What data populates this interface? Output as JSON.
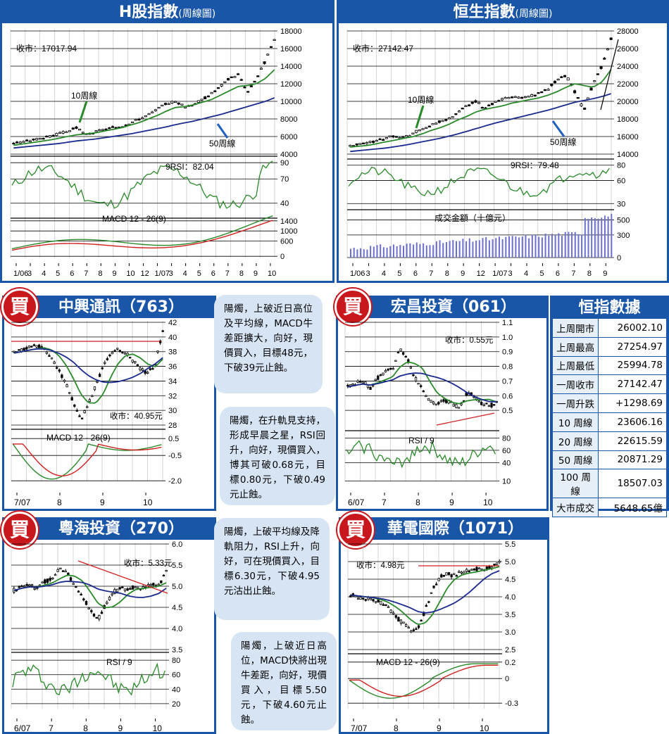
{
  "hshares": {
    "title": "H股指數",
    "subtitle": "(周線圖)",
    "close_label": "收市：17017.94",
    "ma10_label": "10周線",
    "ma50_label": "50周線",
    "rsi_label": "9RSI：82.04",
    "macd_label": "MACD 12 - 26(9)",
    "price_ticks": [
      "18000",
      "16000",
      "14000",
      "12000",
      "10000",
      "8000",
      "6000",
      "4000"
    ],
    "rsi_ticks": [
      "90",
      "70",
      "40"
    ],
    "macd_ticks": [
      "1400",
      "1000",
      "600",
      "0"
    ],
    "x_ticks": [
      "1/06",
      "3",
      "4",
      "5",
      "6",
      "7",
      "8",
      "9",
      "10",
      "12",
      "1/07",
      "3",
      "4",
      "5",
      "6",
      "7",
      "8",
      "9",
      "10"
    ]
  },
  "hsi": {
    "title": "恒生指數",
    "subtitle": "(周線圖)",
    "close_label": "收市：27142.47",
    "ma10_label": "10周線",
    "ma50_label": "50周線",
    "rsi_label": "9RSI：79.48",
    "vol_label": "成交金額（十億元）",
    "price_ticks": [
      "28000",
      "26000",
      "24000",
      "22000",
      "20000",
      "18000",
      "16000",
      "14000"
    ],
    "rsi_ticks": [
      "80",
      "60",
      "30"
    ],
    "vol_ticks": [
      "500",
      "300",
      "0"
    ],
    "x_ticks": [
      "1/06",
      "3",
      "4",
      "5",
      "6",
      "7",
      "8",
      "9",
      "12",
      "1/07",
      "3",
      "4",
      "5",
      "6",
      "7",
      "8",
      "9"
    ]
  },
  "stock_763": {
    "title": "中興通訊（763）",
    "buy": "買",
    "close_label": "收市：40.95元",
    "macd_label": "MACD 12 - 26(9)",
    "price_ticks": [
      "42",
      "40",
      "38",
      "36",
      "34",
      "32",
      "30",
      "28"
    ],
    "macd_ticks": [
      "0.5",
      "-0.5",
      "-2.0"
    ],
    "x_ticks": [
      "7/07",
      "8",
      "9",
      "10"
    ],
    "comment": "陽燭，上破近日高位及平均線，MACD牛差距擴大，向好，現價買入，目標48元，下破39元止蝕。"
  },
  "stock_061": {
    "title": "宏昌投資（061）",
    "buy": "買",
    "close_label": "收市：0.55元",
    "rsi_label": "RSI / 9",
    "price_ticks": [
      "1.1",
      "1.0",
      "0.9",
      "0.8",
      "0.7",
      "0.6",
      "0.5"
    ],
    "rsi_ticks": [
      "80",
      "60",
      "40",
      "10"
    ],
    "x_ticks": [
      "6/07",
      "7",
      "8",
      "9",
      "10"
    ],
    "comment": "陽燭，在升軌見支持，形成早晨之星，RSI回升，向好，現價買入，博其可破0.68元，目標0.80元，下破0.49元止蝕。"
  },
  "stats": {
    "title": "恒指數據",
    "rows": [
      {
        "k": "上周開市",
        "v": "26002.10"
      },
      {
        "k": "上周最高",
        "v": "27254.97"
      },
      {
        "k": "上周最低",
        "v": "25994.78"
      },
      {
        "k": "一周收市",
        "v": "27142.47"
      },
      {
        "k": "一周升跌",
        "v": "+1298.69"
      },
      {
        "k": "10 周線",
        "v": "23606.16"
      },
      {
        "k": "20 周線",
        "v": "22615.59"
      },
      {
        "k": "50 周線",
        "v": "20871.29"
      },
      {
        "k": "100 周線",
        "v": "18507.03"
      },
      {
        "k": "大市成交",
        "v": "5648.65億"
      }
    ]
  },
  "stock_270": {
    "title": "粵海投資（270）",
    "buy": "買",
    "close_label": "收市：5.33元",
    "rsi_label": "RSI / 9",
    "price_ticks": [
      "6.0",
      "5.5",
      "5.0",
      "4.5",
      "4.0",
      "3.5"
    ],
    "rsi_ticks": [
      "80",
      "60",
      "40",
      "20"
    ],
    "x_ticks": [
      "6/07",
      "7",
      "8",
      "9",
      "10"
    ],
    "comment": "陽燭，上破平均線及降軌阻力，RSI上升，向好，可在現價買入，目標6.30元，下破4.95元沽出止蝕。"
  },
  "stock_1071": {
    "title": "華電國際（1071）",
    "buy": "買",
    "close_label": "收市：4.98元",
    "macd_label": "MACD 12 - 26(9)",
    "price_ticks": [
      "5.5",
      "5.0",
      "4.5",
      "4.0",
      "3.5",
      "3.0",
      "2.5"
    ],
    "macd_ticks": [
      "0.2",
      "0",
      "-0.3"
    ],
    "x_ticks": [
      "7/07",
      "8",
      "9",
      "10"
    ],
    "comment": "陽燭，上破近日高位，MACD快將出現牛差距，向好，現價買入，目標5.50元，下破4.60元止蝕。"
  },
  "chart_data": [
    {
      "id": "hshares",
      "type": "line",
      "title": "H股指數",
      "series": [
        {
          "name": "price",
          "values": [
            5300,
            5400,
            5600,
            5800,
            6000,
            6300,
            6600,
            7000,
            6200,
            6500,
            6800,
            7000,
            7200,
            7600,
            8000,
            8500,
            9100,
            9800,
            10000,
            9400,
            9700,
            10200,
            10900,
            11700,
            12600,
            13100,
            11000,
            12600,
            14600,
            17017.94
          ]
        },
        {
          "name": "10周線",
          "values": [
            5000,
            5150,
            5300,
            5450,
            5600,
            5800,
            6000,
            6200,
            6300,
            6400,
            6600,
            6800,
            7000,
            7300,
            7600,
            8000,
            8400,
            8900,
            9300,
            9400,
            9600,
            9900,
            10200,
            10700,
            11200,
            11700,
            11800,
            12000,
            12600,
            13600
          ]
        },
        {
          "name": "50周線",
          "values": [
            4700,
            4800,
            4900,
            5000,
            5100,
            5200,
            5350,
            5500,
            5600,
            5700,
            5850,
            6000,
            6150,
            6300,
            6500,
            6700,
            6900,
            7100,
            7350,
            7550,
            7750,
            8000,
            8250,
            8500,
            8800,
            9100,
            9400,
            9700,
            10000,
            10400
          ]
        }
      ],
      "ylim": [
        4000,
        18000
      ],
      "rsi_last": 82.04,
      "macd_ylim": [
        0,
        1400
      ]
    },
    {
      "id": "hsi",
      "type": "line",
      "title": "恒生指數",
      "series": [
        {
          "name": "price",
          "values": [
            14900,
            15100,
            15300,
            15500,
            15900,
            16100,
            15900,
            16400,
            16900,
            17300,
            17700,
            18000,
            18800,
            19500,
            20000,
            19200,
            19800,
            20300,
            20500,
            20400,
            20600,
            20900,
            21400,
            22500,
            23000,
            21000,
            19000,
            22000,
            24000,
            27142.47
          ]
        },
        {
          "name": "10周線",
          "values": [
            14800,
            14900,
            15000,
            15200,
            15400,
            15600,
            15800,
            16000,
            16300,
            16700,
            17000,
            17400,
            17900,
            18300,
            18800,
            19100,
            19300,
            19500,
            19800,
            20000,
            20200,
            20400,
            20700,
            21100,
            21600,
            22000,
            21800,
            21600,
            22200,
            23606.16
          ]
        },
        {
          "name": "50周線",
          "values": [
            14300,
            14400,
            14500,
            14600,
            14700,
            14850,
            15000,
            15200,
            15400,
            15600,
            15800,
            16050,
            16300,
            16600,
            16900,
            17200,
            17500,
            17750,
            18000,
            18250,
            18500,
            18750,
            19000,
            19300,
            19600,
            19900,
            20100,
            20300,
            20550,
            20871.29
          ]
        }
      ],
      "ylim": [
        14000,
        28000
      ],
      "rsi_last": 79.48,
      "vol_ylim": [
        0,
        500
      ]
    },
    {
      "id": "763",
      "type": "line",
      "series": [
        {
          "name": "price",
          "values": [
            37.8,
            38.2,
            38.6,
            38.9,
            38.4,
            37.2,
            35.5,
            33.6,
            31.0,
            28.7,
            30.8,
            33.5,
            36.0,
            37.8,
            38.3,
            37.8,
            36.8,
            35.6,
            35.0,
            36.4,
            40.95
          ]
        }
      ],
      "ylim": [
        28,
        42
      ]
    },
    {
      "id": "061",
      "type": "line",
      "series": [
        {
          "name": "price",
          "values": [
            0.66,
            0.68,
            0.7,
            0.65,
            0.72,
            0.76,
            0.78,
            0.92,
            0.86,
            0.72,
            0.66,
            0.56,
            0.54,
            0.57,
            0.55,
            0.52,
            0.62,
            0.6,
            0.55,
            0.53,
            0.55
          ]
        }
      ],
      "ylim": [
        0.4,
        1.1
      ]
    },
    {
      "id": "270",
      "type": "line",
      "series": [
        {
          "name": "price",
          "values": [
            4.9,
            5.0,
            5.05,
            4.95,
            5.1,
            5.2,
            5.45,
            5.3,
            5.0,
            4.75,
            4.45,
            4.2,
            4.55,
            4.85,
            4.95,
            4.9,
            5.0,
            4.95,
            5.05,
            5.0,
            5.33
          ]
        }
      ],
      "ylim": [
        3.5,
        6.0
      ]
    },
    {
      "id": "1071",
      "type": "line",
      "series": [
        {
          "name": "price",
          "values": [
            4.05,
            4.0,
            3.95,
            3.9,
            3.85,
            3.7,
            3.45,
            3.25,
            3.05,
            3.1,
            3.6,
            4.2,
            4.55,
            4.65,
            4.6,
            4.7,
            4.75,
            4.8,
            4.8,
            4.85,
            4.98
          ]
        }
      ],
      "ylim": [
        2.5,
        5.5
      ]
    }
  ]
}
